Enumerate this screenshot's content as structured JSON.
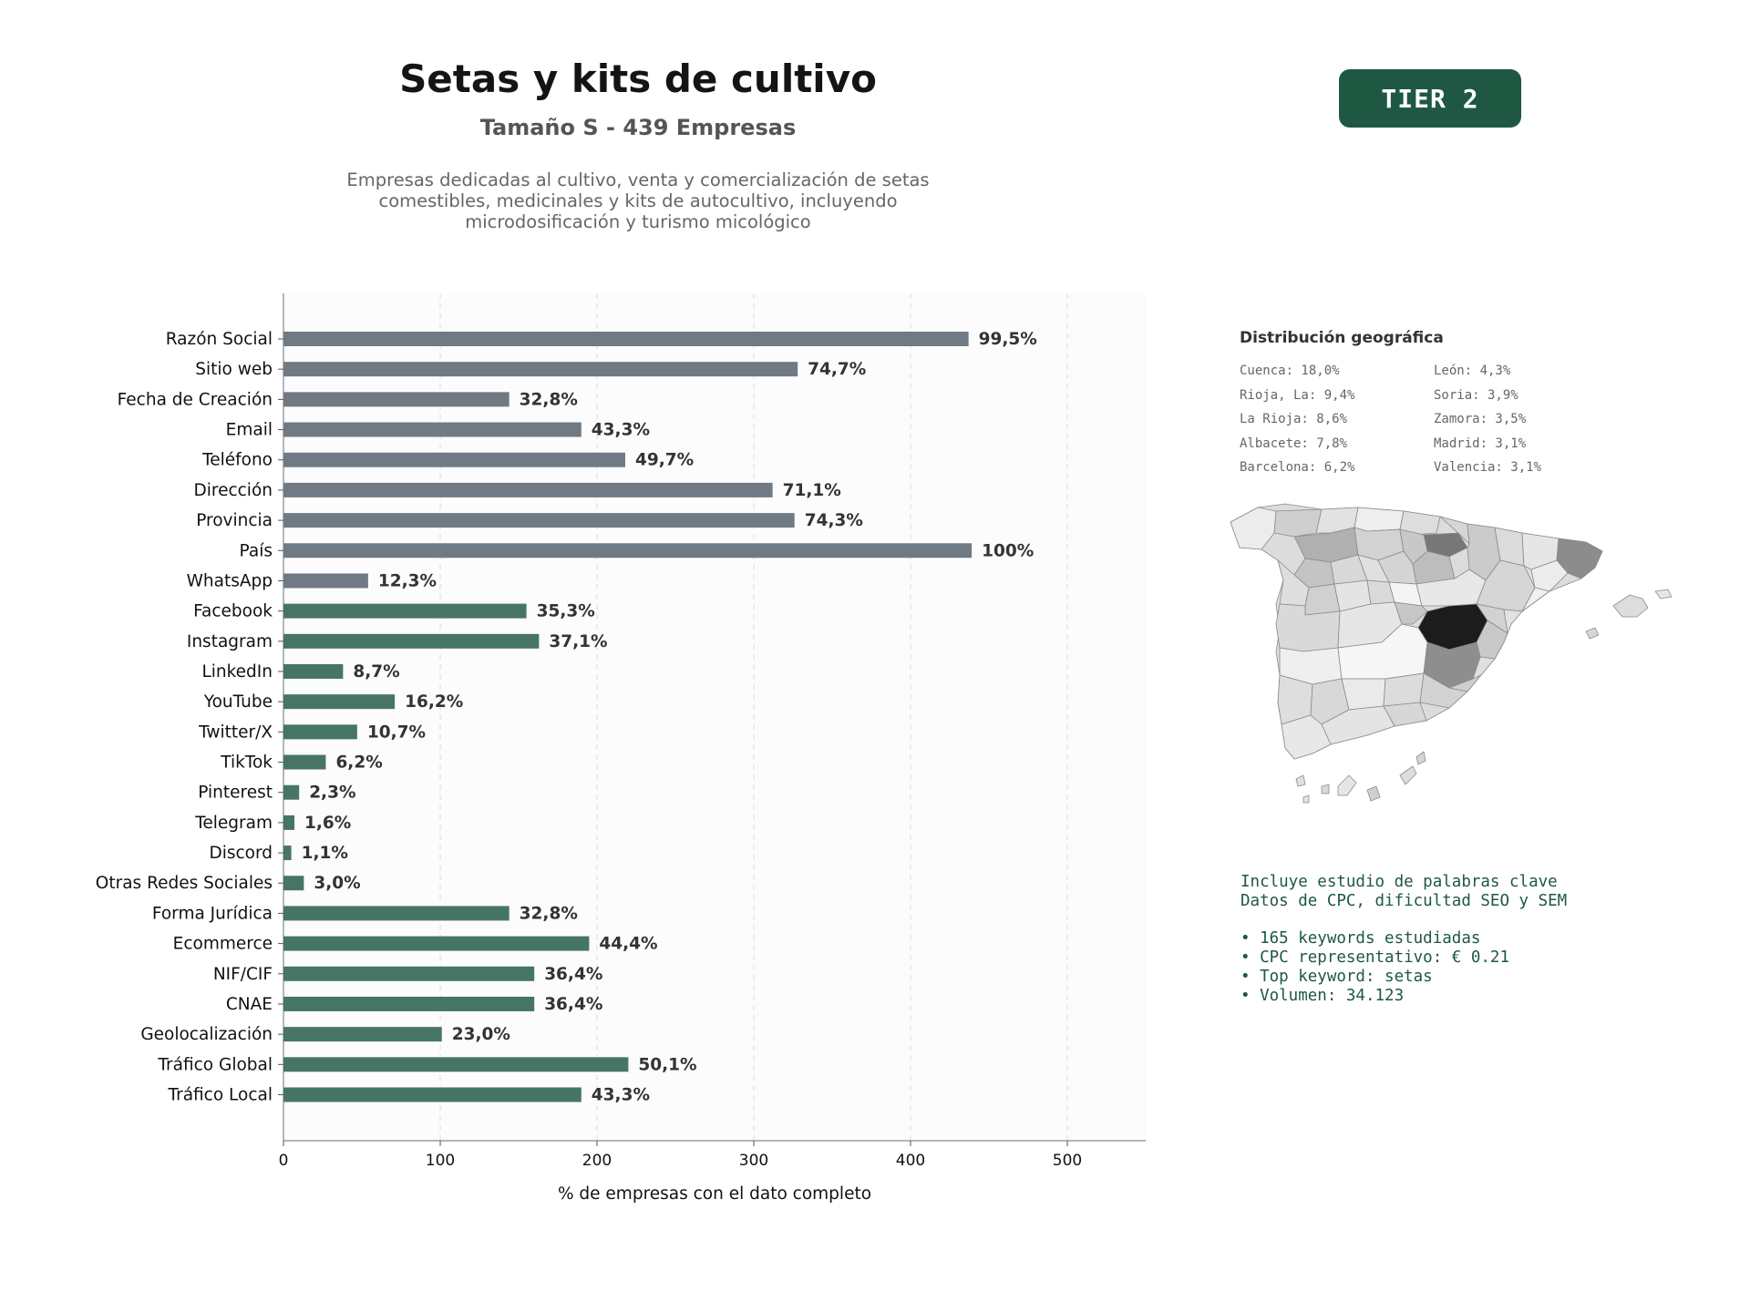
{
  "header": {
    "title": "Setas y kits de cultivo",
    "subtitle": "Tamaño S - 439 Empresas",
    "description": [
      "Empresas dedicadas al cultivo, venta y comercialización de setas",
      "comestibles, medicinales y kits de autocultivo, incluyendo",
      "microdosificación y turismo micológico"
    ],
    "badge": "TIER 2"
  },
  "colors": {
    "gray_bar": "#6f7a84",
    "green_bar": "#477565",
    "accent": "#1e5843"
  },
  "chart_data": {
    "type": "bar",
    "orientation": "horizontal",
    "xlabel": "% de empresas con el dato completo",
    "xlim": [
      0,
      550
    ],
    "xticks": [
      0,
      100,
      200,
      300,
      400,
      500
    ],
    "grid": "vertical dashed",
    "categories": [
      "Razón Social",
      "Sitio web",
      "Fecha de Creación",
      "Email",
      "Teléfono",
      "Dirección",
      "Provincia",
      "País",
      "WhatsApp",
      "Facebook",
      "Instagram",
      "LinkedIn",
      "YouTube",
      "Twitter/X",
      "TikTok",
      "Pinterest",
      "Telegram",
      "Discord",
      "Otras Redes Sociales",
      "Forma Jurídica",
      "Ecommerce",
      "NIF/CIF",
      "CNAE",
      "Geolocalización",
      "Tráfico Global",
      "Tráfico Local"
    ],
    "values": [
      437,
      328,
      144,
      190,
      218,
      312,
      326,
      439,
      54,
      155,
      163,
      38,
      71,
      47,
      27,
      10,
      7,
      5,
      13,
      144,
      195,
      160,
      160,
      101,
      220,
      190
    ],
    "labels": [
      "99,5%",
      "74,7%",
      "32,8%",
      "43,3%",
      "49,7%",
      "71,1%",
      "74,3%",
      "100%",
      "12,3%",
      "35,3%",
      "37,1%",
      "8,7%",
      "16,2%",
      "10,7%",
      "6,2%",
      "2,3%",
      "1,6%",
      "1,1%",
      "3,0%",
      "32,8%",
      "44,4%",
      "36,4%",
      "36,4%",
      "23,0%",
      "50,1%",
      "43,3%"
    ],
    "colors": [
      "gray",
      "gray",
      "gray",
      "gray",
      "gray",
      "gray",
      "gray",
      "gray",
      "gray",
      "green",
      "green",
      "green",
      "green",
      "green",
      "green",
      "green",
      "green",
      "green",
      "green",
      "green",
      "green",
      "green",
      "green",
      "green",
      "green",
      "green"
    ]
  },
  "geo": {
    "title": "Distribución geográfica",
    "items": [
      "Cuenca: 18,0%",
      "León: 4,3%",
      "Rioja, La: 9,4%",
      "Soria: 3,9%",
      "La Rioja: 8,6%",
      "Zamora: 3,5%",
      "Albacete: 7,8%",
      "Madrid: 3,1%",
      "Barcelona: 6,2%",
      "Valencia: 3,1%"
    ]
  },
  "keywords": {
    "intro": [
      "Incluye estudio de palabras clave",
      "Datos de CPC, dificultad SEO y SEM"
    ],
    "bullets": [
      "• 165 keywords estudiadas",
      "• CPC representativo: € 0.21",
      "• Top keyword: setas",
      "• Volumen: 34.123"
    ]
  }
}
